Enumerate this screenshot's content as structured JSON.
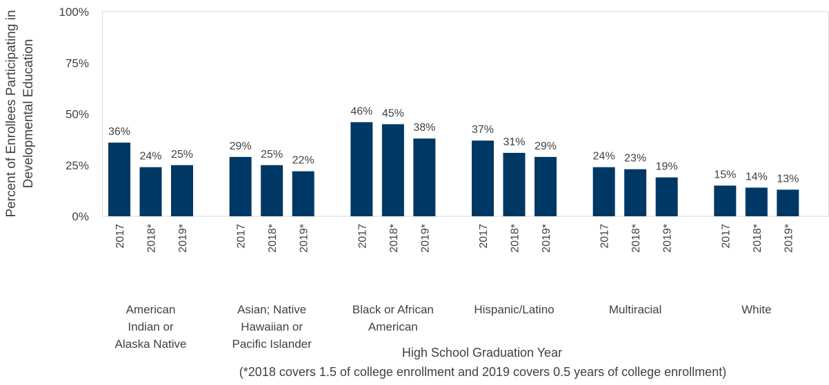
{
  "chart_data": {
    "type": "bar",
    "title": "",
    "ylabel_lines": [
      "Percent of Enrollees Participating in",
      "Developmental Education"
    ],
    "xlabel": "High School Graduation Year",
    "footnote": "(*2018 covers 1.5 of college enrollment and 2019 covers 0.5 years of college enrollment)",
    "ylim": [
      0,
      100
    ],
    "yticks": [
      0,
      25,
      50,
      75,
      100
    ],
    "ytick_labels": [
      "0%",
      "25%",
      "50%",
      "75%",
      "100%"
    ],
    "bar_color": "#003865",
    "groups": [
      {
        "label_lines": [
          "American",
          "Indian or",
          "Alaska Native"
        ],
        "categories": [
          "2017",
          "2018*",
          "2019*"
        ],
        "values": [
          36,
          24,
          25
        ],
        "value_labels": [
          "36%",
          "24%",
          "25%"
        ]
      },
      {
        "label_lines": [
          "Asian; Native",
          "Hawaiian or",
          "Pacific Islander"
        ],
        "categories": [
          "2017",
          "2018*",
          "2019*"
        ],
        "values": [
          29,
          25,
          22
        ],
        "value_labels": [
          "29%",
          "25%",
          "22%"
        ]
      },
      {
        "label_lines": [
          "Black or African",
          "American"
        ],
        "categories": [
          "2017",
          "2018*",
          "2019*"
        ],
        "values": [
          46,
          45,
          38
        ],
        "value_labels": [
          "46%",
          "45%",
          "38%"
        ]
      },
      {
        "label_lines": [
          "Hispanic/Latino"
        ],
        "categories": [
          "2017",
          "2018*",
          "2019*"
        ],
        "values": [
          37,
          31,
          29
        ],
        "value_labels": [
          "37%",
          "31%",
          "29%"
        ]
      },
      {
        "label_lines": [
          "Multiracial"
        ],
        "categories": [
          "2017",
          "2018*",
          "2019*"
        ],
        "values": [
          24,
          23,
          19
        ],
        "value_labels": [
          "24%",
          "23%",
          "19%"
        ]
      },
      {
        "label_lines": [
          "White"
        ],
        "categories": [
          "2017",
          "2018*",
          "2019*"
        ],
        "values": [
          15,
          14,
          13
        ],
        "value_labels": [
          "15%",
          "14%",
          "13%"
        ]
      }
    ]
  }
}
